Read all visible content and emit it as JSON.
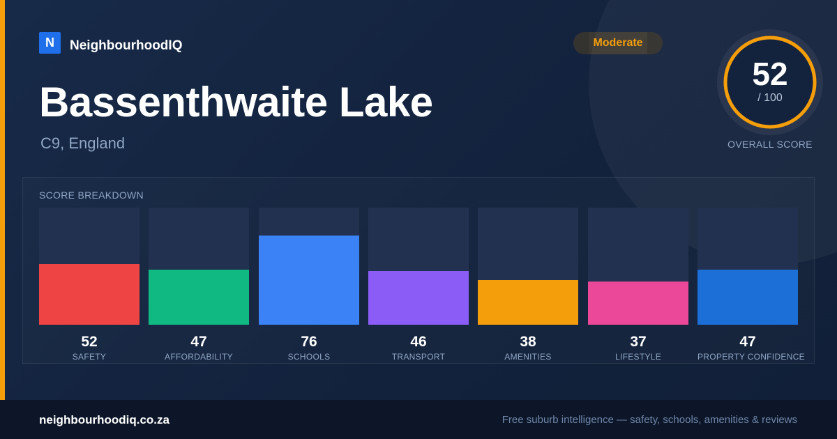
{
  "brand": {
    "logo_letter": "N",
    "name": "NeighbourhoodIQ"
  },
  "header": {
    "title": "Bassenthwaite Lake",
    "subtitle": "C9, England"
  },
  "badge": {
    "label": "Moderate",
    "color": "#f59e0b"
  },
  "overall": {
    "value": "52",
    "max_label": "/ 100",
    "label": "OVERALL SCORE",
    "score": 52,
    "max": 100
  },
  "breakdown": {
    "title": "SCORE BREAKDOWN",
    "items": [
      {
        "label": "SAFETY",
        "value": "52",
        "score": 52,
        "color": "#ef4444"
      },
      {
        "label": "AFFORDABILITY",
        "value": "47",
        "score": 47,
        "color": "#10b981"
      },
      {
        "label": "SCHOOLS",
        "value": "76",
        "score": 76,
        "color": "#3b82f6"
      },
      {
        "label": "TRANSPORT",
        "value": "46",
        "score": 46,
        "color": "#8b5cf6"
      },
      {
        "label": "AMENITIES",
        "value": "38",
        "score": 38,
        "color": "#f59e0b"
      },
      {
        "label": "LIFESTYLE",
        "value": "37",
        "score": 37,
        "color": "#ec4899"
      },
      {
        "label": "PROPERTY CONFIDENCE",
        "value": "47",
        "score": 47,
        "color": "#1d6fd8"
      }
    ]
  },
  "footer": {
    "domain": "neighbourhoodiq.co.za",
    "tagline": "Free suburb intelligence — safety, schools, amenities & reviews"
  }
}
